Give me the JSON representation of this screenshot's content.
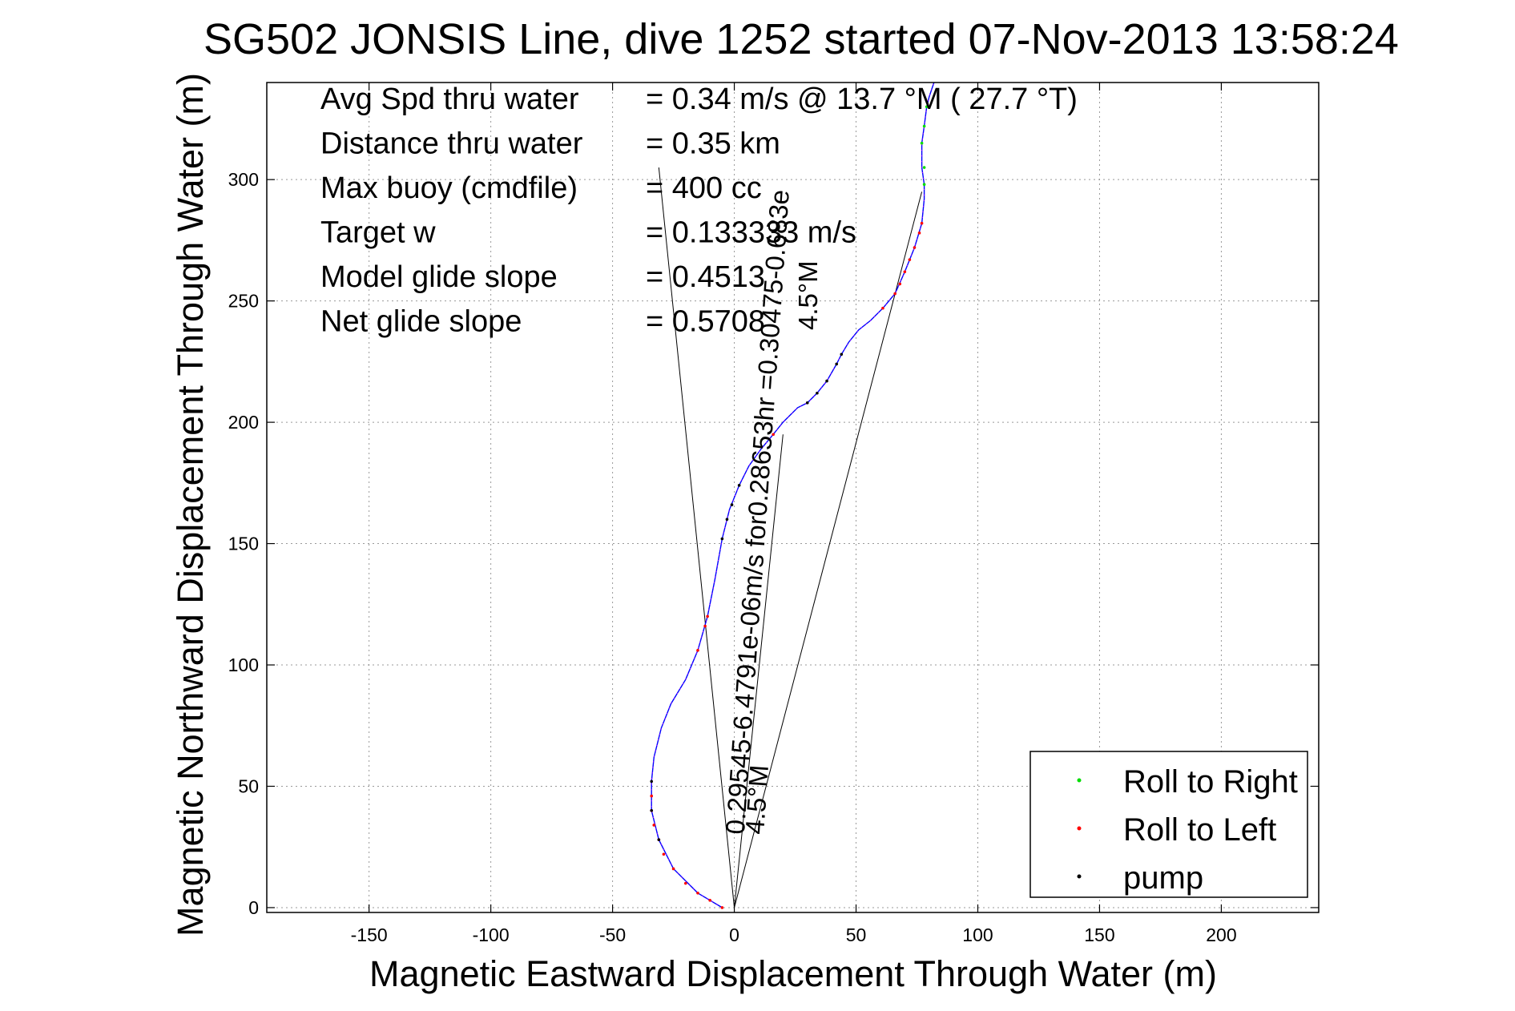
{
  "chart_data": {
    "type": "line",
    "title": "SG502 JONSIS Line, dive 1252 started 07-Nov-2013 13:58:24",
    "xlabel": "Magnetic Eastward Displacement Through Water (m)",
    "ylabel": "Magnetic Northward Displacement Through Water (m)",
    "xlim": [
      -192,
      240
    ],
    "ylim": [
      -2,
      340
    ],
    "xticks": [
      -150,
      -100,
      -50,
      0,
      50,
      100,
      150,
      200
    ],
    "yticks": [
      0,
      50,
      100,
      150,
      200,
      250,
      300
    ],
    "grid": true,
    "info_lines": [
      {
        "label": "Avg Spd thru water",
        "value": "=  0.34 m/s @  13.7 °M ( 27.7 °T)"
      },
      {
        "label": "Distance thru water",
        "value": "=  0.35 km"
      },
      {
        "label": "Max buoy (cmdfile)",
        "value": "= 400 cc"
      },
      {
        "label": "Target w",
        "value": "= 0.133333 m/s"
      },
      {
        "label": "Model glide slope",
        "value": "= 0.4513"
      },
      {
        "label": "Net glide slope",
        "value": "= 0.5708"
      }
    ],
    "track": {
      "x": [
        -5,
        -15,
        -25,
        -31,
        -34,
        -34,
        -33,
        -30,
        -26,
        -20,
        -15,
        -11,
        -8,
        -5,
        -2,
        2,
        6,
        11,
        16,
        20,
        26,
        30,
        34,
        38,
        42,
        44,
        47,
        51,
        56,
        61,
        66,
        70,
        74,
        77,
        78,
        78,
        77,
        77,
        78,
        79,
        80,
        81,
        82
      ],
      "y": [
        0,
        6,
        16,
        28,
        40,
        52,
        62,
        74,
        84,
        94,
        106,
        120,
        135,
        152,
        164,
        174,
        182,
        189,
        195,
        200,
        206,
        208,
        212,
        217,
        224,
        228,
        233,
        238,
        242,
        247,
        253,
        262,
        272,
        282,
        292,
        298,
        305,
        315,
        322,
        330,
        334,
        337,
        340
      ]
    },
    "current_lines": [
      {
        "x": [
          0,
          -31
        ],
        "y": [
          0,
          305
        ]
      },
      {
        "x": [
          0,
          77
        ],
        "y": [
          0,
          295
        ]
      },
      {
        "x": [
          0,
          20
        ],
        "y": [
          0,
          195
        ]
      }
    ],
    "rotated_labels": [
      {
        "text": "0.29545-6.4791e-06m/s for0.28653hr =0.30475-0.683e",
        "x": 4,
        "y": 30,
        "angle": -86
      },
      {
        "text": "4.5°M",
        "x": 12,
        "y": 30,
        "angle": -86
      },
      {
        "text": "4.5°M",
        "x": 34,
        "y": 238,
        "angle": -90
      }
    ],
    "series": [
      {
        "name": "Roll to Right",
        "color": "#00dd00"
      },
      {
        "name": "Roll to Left",
        "color": "#ff0000"
      },
      {
        "name": "pump",
        "color": "#000000"
      }
    ],
    "markers": {
      "Roll to Right": [
        [
          78,
          298
        ],
        [
          78,
          305
        ],
        [
          77,
          315
        ],
        [
          78,
          322
        ],
        [
          79,
          330
        ]
      ],
      "Roll to Left": [
        [
          -5,
          0
        ],
        [
          -10,
          3
        ],
        [
          -15,
          6
        ],
        [
          -20,
          10
        ],
        [
          -25,
          16
        ],
        [
          -29,
          22
        ],
        [
          -31,
          28
        ],
        [
          -33,
          34
        ],
        [
          -34,
          40
        ],
        [
          -34,
          46
        ],
        [
          -15,
          106
        ],
        [
          -12,
          116
        ],
        [
          -11,
          120
        ],
        [
          16,
          195
        ],
        [
          61,
          247
        ],
        [
          66,
          253
        ],
        [
          68,
          257
        ],
        [
          70,
          262
        ],
        [
          72,
          267
        ],
        [
          74,
          272
        ],
        [
          76,
          278
        ],
        [
          77,
          282
        ]
      ],
      "pump": [
        [
          -31,
          28
        ],
        [
          -34,
          40
        ],
        [
          -34,
          52
        ],
        [
          -5,
          152
        ],
        [
          -3,
          160
        ],
        [
          -1,
          166
        ],
        [
          2,
          174
        ],
        [
          30,
          208
        ],
        [
          34,
          212
        ],
        [
          38,
          217
        ],
        [
          42,
          224
        ],
        [
          44,
          228
        ]
      ]
    },
    "legend_position": "bottom-right",
    "track_color": "#0000ff",
    "accent_color": "#ff00ff"
  }
}
